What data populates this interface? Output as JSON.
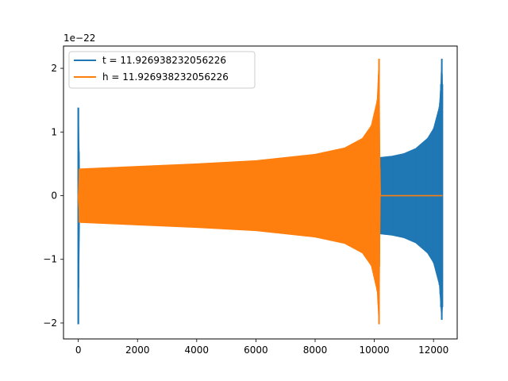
{
  "chart_data": {
    "type": "line",
    "title": "",
    "xlabel": "",
    "ylabel": "",
    "y_offset_text": "1e−22",
    "xlim": [
      -500,
      12800
    ],
    "ylim": [
      -2.25,
      2.35
    ],
    "grid": false,
    "legend_position": "upper-left",
    "x_ticks": [
      0,
      2000,
      4000,
      6000,
      8000,
      10000,
      12000
    ],
    "x_tick_labels": [
      "0",
      "2000",
      "4000",
      "6000",
      "8000",
      "10000",
      "12000"
    ],
    "y_ticks": [
      -2,
      -1,
      0,
      1,
      2
    ],
    "y_tick_labels": [
      "−2",
      "−1",
      "0",
      "1",
      "2"
    ],
    "series": [
      {
        "name": "t = 11.926938232056226",
        "color": "#1f77b4",
        "description_points": {
          "x": [
            0,
            0,
            40,
            10200,
            10600,
            11000,
            11400,
            11800,
            12000,
            12200,
            12250,
            12280,
            12300
          ],
          "upper": [
            1.38,
            1.38,
            0.4,
            0.6,
            0.62,
            0.66,
            0.74,
            0.9,
            1.05,
            1.4,
            1.75,
            2.15,
            1.75
          ],
          "lower": [
            -2.02,
            -2.02,
            -0.4,
            -0.6,
            -0.62,
            -0.66,
            -0.74,
            -0.9,
            -1.05,
            -1.4,
            -1.75,
            -1.95,
            -1.75
          ]
        }
      },
      {
        "name": "h = 11.926938232056226",
        "color": "#ff7f0e",
        "description_points": {
          "x": [
            0,
            40,
            2000,
            4000,
            6000,
            8000,
            9000,
            9600,
            9900,
            10100,
            10160,
            10200,
            10300,
            12300
          ],
          "upper": [
            0.0,
            0.42,
            0.46,
            0.5,
            0.55,
            0.65,
            0.75,
            0.9,
            1.1,
            1.5,
            2.15,
            0.0,
            0.0,
            0.0
          ],
          "lower": [
            0.0,
            -0.42,
            -0.46,
            -0.5,
            -0.55,
            -0.65,
            -0.75,
            -0.9,
            -1.1,
            -1.5,
            -2.02,
            0.0,
            0.0,
            0.0
          ]
        }
      }
    ]
  }
}
